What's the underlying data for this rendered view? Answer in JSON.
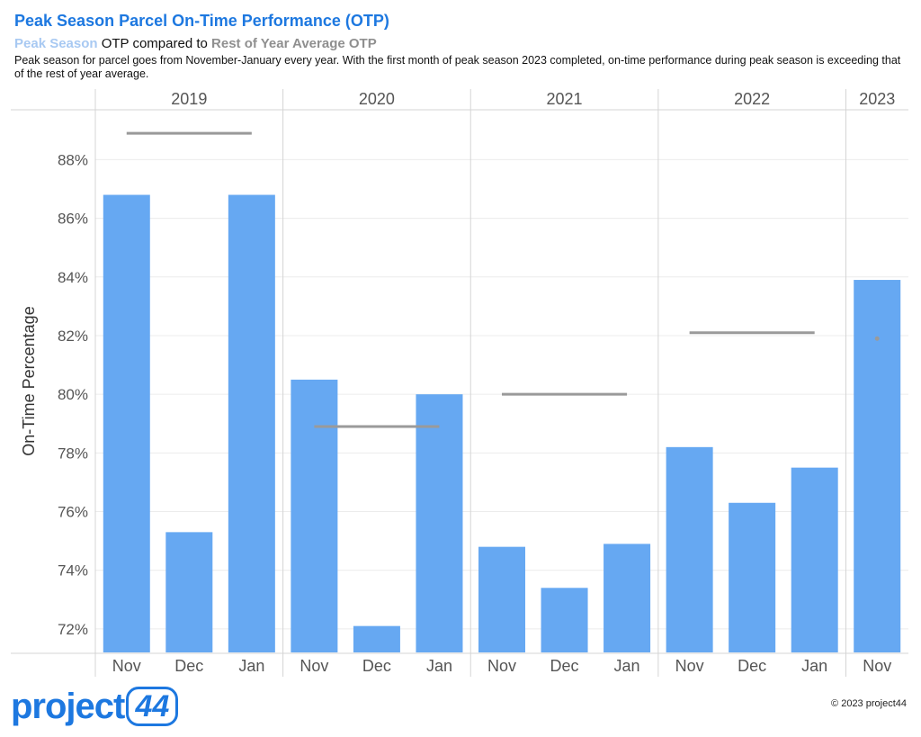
{
  "header": {
    "title": "Peak Season Parcel On-Time Performance (OTP)",
    "subtitle_peak": "Peak Season",
    "subtitle_mid": " OTP compared to ",
    "subtitle_rest": "Rest of Year Average OTP",
    "description": "Peak season for parcel goes from November-January every year. With the first month of peak season 2023 completed, on-time performance during peak season is exceeding that of the rest of year average."
  },
  "footer": {
    "logo_text": "project",
    "logo_number": "44",
    "copyright": "© 2023 project44"
  },
  "colors": {
    "bar": "#66a8f2",
    "avg_line": "#9a9a9a",
    "grid": "#ececec",
    "divider": "#d4d4d4",
    "axis_text": "#555555",
    "title": "#1d78e0"
  },
  "chart_data": {
    "type": "bar",
    "title": "Peak Season Parcel On-Time Performance (OTP)",
    "ylabel": "On-Time Percentage",
    "ylim": [
      71.2,
      89.7
    ],
    "yticks": [
      72,
      74,
      76,
      78,
      80,
      82,
      84,
      86,
      88
    ],
    "ytick_labels": [
      "72%",
      "74%",
      "76%",
      "78%",
      "80%",
      "82%",
      "84%",
      "86%",
      "88%"
    ],
    "grid": true,
    "groups": [
      {
        "label": "2019",
        "months": [
          "Nov",
          "Dec",
          "Jan"
        ],
        "values": [
          86.8,
          75.3,
          86.8
        ],
        "rest_of_year_avg": 88.9
      },
      {
        "label": "2020",
        "months": [
          "Nov",
          "Dec",
          "Jan"
        ],
        "values": [
          80.5,
          72.1,
          80.0
        ],
        "rest_of_year_avg": 78.9
      },
      {
        "label": "2021",
        "months": [
          "Nov",
          "Dec",
          "Jan"
        ],
        "values": [
          74.8,
          73.4,
          74.9
        ],
        "rest_of_year_avg": 80.0
      },
      {
        "label": "2022",
        "months": [
          "Nov",
          "Dec",
          "Jan"
        ],
        "values": [
          78.2,
          76.3,
          77.5
        ],
        "rest_of_year_avg": 82.1
      },
      {
        "label": "2023",
        "months": [
          "Nov"
        ],
        "values": [
          83.9
        ],
        "rest_of_year_avg": 81.9
      }
    ]
  }
}
